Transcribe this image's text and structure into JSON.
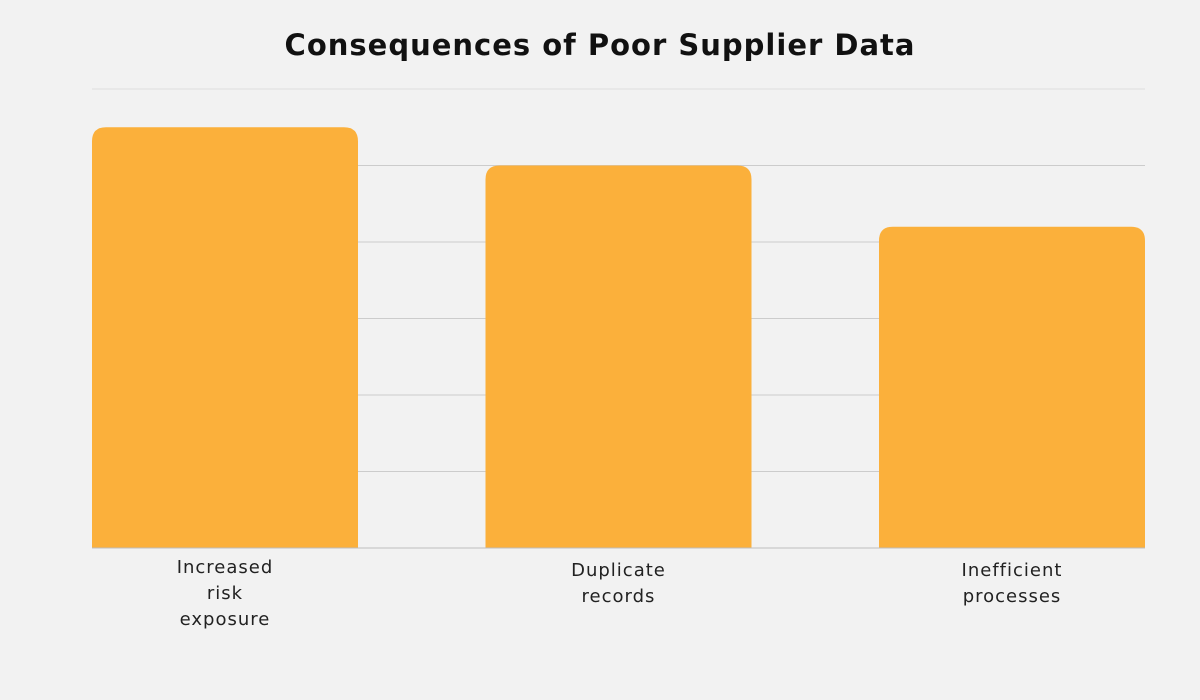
{
  "chart_data": {
    "type": "bar",
    "title": "Consequences of Poor Supplier Data",
    "xlabel": "",
    "ylabel": "",
    "categories": [
      "Increased risk exposure",
      "Duplicate records",
      "Inefficient processes"
    ],
    "category_lines": [
      [
        "Increased",
        "risk",
        "exposure"
      ],
      [
        "Duplicate",
        "records"
      ],
      [
        "Inefficient",
        "processes"
      ]
    ],
    "values": [
      5.5,
      5.0,
      4.2
    ],
    "ylim": [
      0,
      6
    ],
    "grid": true,
    "legend": "none",
    "bar_color": "#fbb03b",
    "grid_color": "#cccccc"
  }
}
